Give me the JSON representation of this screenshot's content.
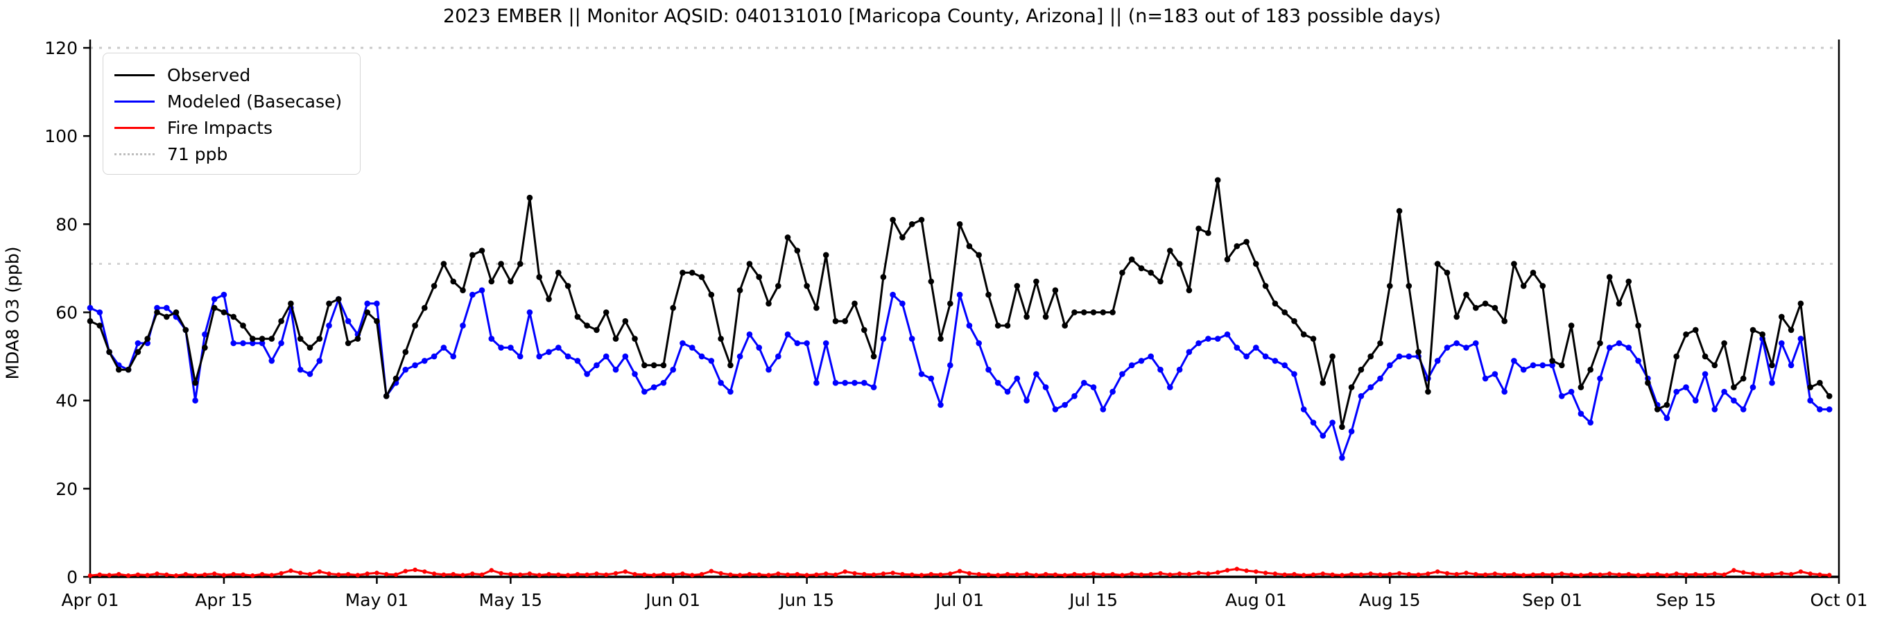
{
  "header": {
    "title": "2023 EMBER || Monitor AQSID: 040131010 [Maricopa County, Arizona] || (n=183 out of 183 possible days)"
  },
  "axes": {
    "ylabel": "MDA8 O3 (ppb)",
    "ylim": [
      0,
      120
    ],
    "y_ticks": [
      0,
      20,
      40,
      60,
      80,
      100,
      120
    ],
    "x_tick_labels": [
      "Apr 01",
      "Apr 15",
      "May 01",
      "May 15",
      "Jun 01",
      "Jun 15",
      "Jul 01",
      "Jul 15",
      "Aug 01",
      "Aug 15",
      "Sep 01",
      "Sep 15",
      "Oct 01"
    ],
    "x_tick_days": [
      0,
      14,
      30,
      44,
      61,
      75,
      91,
      105,
      122,
      136,
      153,
      167,
      183
    ]
  },
  "legend": {
    "items": [
      {
        "label": "Observed",
        "color": "#000000",
        "style": "solid"
      },
      {
        "label": "Modeled (Basecase)",
        "color": "#0000ff",
        "style": "solid"
      },
      {
        "label": "Fire Impacts",
        "color": "#ff0000",
        "style": "solid"
      },
      {
        "label": "71 ppb",
        "color": "#d3d3d3",
        "style": "dotted"
      }
    ]
  },
  "chart_data": {
    "type": "line",
    "title": "2023 EMBER || Monitor AQSID: 040131010 [Maricopa County, Arizona] || (n=183 out of 183 possible days)",
    "xlabel": "",
    "ylabel": "MDA8 O3 (ppb)",
    "ylim": [
      0,
      120
    ],
    "grid": false,
    "legend_position": "upper left",
    "x_start_label": "Apr 01",
    "x_end_label": "Oct 01",
    "n_days": 183,
    "threshold": {
      "label": "71 ppb",
      "value": 71,
      "color": "#d3d3d3",
      "style": "dotted"
    },
    "series": [
      {
        "name": "Observed",
        "color": "#000000",
        "marker": "circle",
        "values": [
          58,
          57,
          51,
          47,
          47,
          51,
          54,
          60,
          59,
          60,
          56,
          44,
          52,
          61,
          60,
          59,
          57,
          54,
          54,
          54,
          58,
          62,
          54,
          52,
          54,
          62,
          63,
          53,
          54,
          60,
          58,
          41,
          45,
          51,
          57,
          61,
          66,
          71,
          67,
          65,
          73,
          74,
          67,
          71,
          67,
          71,
          86,
          68,
          63,
          69,
          66,
          59,
          57,
          56,
          60,
          54,
          58,
          54,
          48,
          48,
          48,
          61,
          69,
          69,
          68,
          64,
          54,
          48,
          65,
          71,
          68,
          62,
          66,
          77,
          74,
          66,
          61,
          73,
          58,
          58,
          62,
          56,
          50,
          68,
          81,
          77,
          80,
          81,
          67,
          54,
          62,
          80,
          75,
          73,
          64,
          57,
          57,
          66,
          59,
          67,
          59,
          65,
          57,
          60,
          60,
          60,
          60,
          60,
          69,
          72,
          70,
          69,
          67,
          74,
          71,
          65,
          79,
          78,
          90,
          72,
          75,
          76,
          71,
          66,
          62,
          60,
          58,
          55,
          54,
          44,
          50,
          34,
          43,
          47,
          50,
          53,
          66,
          83,
          66,
          51,
          42,
          71,
          69,
          59,
          64,
          61,
          62,
          61,
          58,
          71,
          66,
          69,
          66,
          49,
          48,
          57,
          43,
          47,
          53,
          68,
          62,
          67,
          57,
          44,
          38,
          39,
          50,
          55,
          56,
          50,
          48,
          53,
          43,
          45,
          56,
          55,
          48,
          59,
          56,
          62,
          43,
          44,
          41
        ]
      },
      {
        "name": "Modeled (Basecase)",
        "color": "#0000ff",
        "marker": "circle",
        "values": [
          61,
          60,
          51,
          48,
          47,
          53,
          53,
          61,
          61,
          59,
          56,
          40,
          55,
          63,
          64,
          53,
          53,
          53,
          53,
          49,
          53,
          61,
          47,
          46,
          49,
          57,
          63,
          58,
          55,
          62,
          62,
          41,
          44,
          47,
          48,
          49,
          50,
          52,
          50,
          57,
          64,
          65,
          54,
          52,
          52,
          50,
          60,
          50,
          51,
          52,
          50,
          49,
          46,
          48,
          50,
          47,
          50,
          46,
          42,
          43,
          44,
          47,
          53,
          52,
          50,
          49,
          44,
          42,
          50,
          55,
          52,
          47,
          50,
          55,
          53,
          53,
          44,
          53,
          44,
          44,
          44,
          44,
          43,
          54,
          64,
          62,
          54,
          46,
          45,
          39,
          48,
          64,
          57,
          53,
          47,
          44,
          42,
          45,
          40,
          46,
          43,
          38,
          39,
          41,
          44,
          43,
          38,
          42,
          46,
          48,
          49,
          50,
          47,
          43,
          47,
          51,
          53,
          54,
          54,
          55,
          52,
          50,
          52,
          50,
          49,
          48,
          46,
          38,
          35,
          32,
          35,
          27,
          33,
          41,
          43,
          45,
          48,
          50,
          50,
          50,
          45,
          49,
          52,
          53,
          52,
          53,
          45,
          46,
          42,
          49,
          47,
          48,
          48,
          48,
          41,
          42,
          37,
          35,
          45,
          52,
          53,
          52,
          49,
          45,
          39,
          36,
          42,
          43,
          40,
          46,
          38,
          42,
          40,
          38,
          43,
          54,
          44,
          53,
          48,
          54,
          40,
          38,
          38
        ]
      },
      {
        "name": "Fire Impacts",
        "color": "#ff0000",
        "marker": "circle",
        "values": [
          0.3,
          0.5,
          0.4,
          0.6,
          0.3,
          0.5,
          0.4,
          0.7,
          0.5,
          0.3,
          0.6,
          0.4,
          0.5,
          0.7,
          0.4,
          0.6,
          0.5,
          0.3,
          0.6,
          0.4,
          0.8,
          1.4,
          0.9,
          0.6,
          1.2,
          0.7,
          0.5,
          0.6,
          0.4,
          0.7,
          0.9,
          0.6,
          0.5,
          1.3,
          1.6,
          1.2,
          0.7,
          0.5,
          0.6,
          0.4,
          0.7,
          0.5,
          1.5,
          0.8,
          0.6,
          0.5,
          0.7,
          0.4,
          0.6,
          0.5,
          0.4,
          0.6,
          0.5,
          0.7,
          0.5,
          0.8,
          1.2,
          0.6,
          0.5,
          0.4,
          0.6,
          0.5,
          0.7,
          0.4,
          0.6,
          1.3,
          0.8,
          0.5,
          0.4,
          0.6,
          0.5,
          0.4,
          0.7,
          0.5,
          0.6,
          0.4,
          0.5,
          0.7,
          0.5,
          1.2,
          0.8,
          0.6,
          0.5,
          0.7,
          0.9,
          0.6,
          0.5,
          0.4,
          0.6,
          0.5,
          0.7,
          1.3,
          0.8,
          0.6,
          0.5,
          0.4,
          0.6,
          0.5,
          0.7,
          0.4,
          0.6,
          0.5,
          0.4,
          0.6,
          0.5,
          0.7,
          0.5,
          0.6,
          0.4,
          0.7,
          0.5,
          0.6,
          0.8,
          0.5,
          0.7,
          0.6,
          0.9,
          0.7,
          1.0,
          1.5,
          1.8,
          1.4,
          1.2,
          0.9,
          0.7,
          0.5,
          0.6,
          0.4,
          0.5,
          0.7,
          0.5,
          0.4,
          0.6,
          0.5,
          0.7,
          0.5,
          0.6,
          0.8,
          0.6,
          0.5,
          0.7,
          1.2,
          0.8,
          0.6,
          0.9,
          0.6,
          0.5,
          0.7,
          0.5,
          0.6,
          0.4,
          0.5,
          0.6,
          0.5,
          0.7,
          0.5,
          0.4,
          0.6,
          0.5,
          0.7,
          0.5,
          0.6,
          0.4,
          0.5,
          0.6,
          0.4,
          0.7,
          0.5,
          0.6,
          0.5,
          0.7,
          0.5,
          1.5,
          1.0,
          0.7,
          0.5,
          0.6,
          0.8,
          0.6,
          1.2,
          0.7,
          0.5,
          0.4
        ]
      }
    ]
  },
  "layout_colors": {
    "background": "#ffffff",
    "axis": "#000000",
    "threshold_line": "#d3d3d3"
  }
}
